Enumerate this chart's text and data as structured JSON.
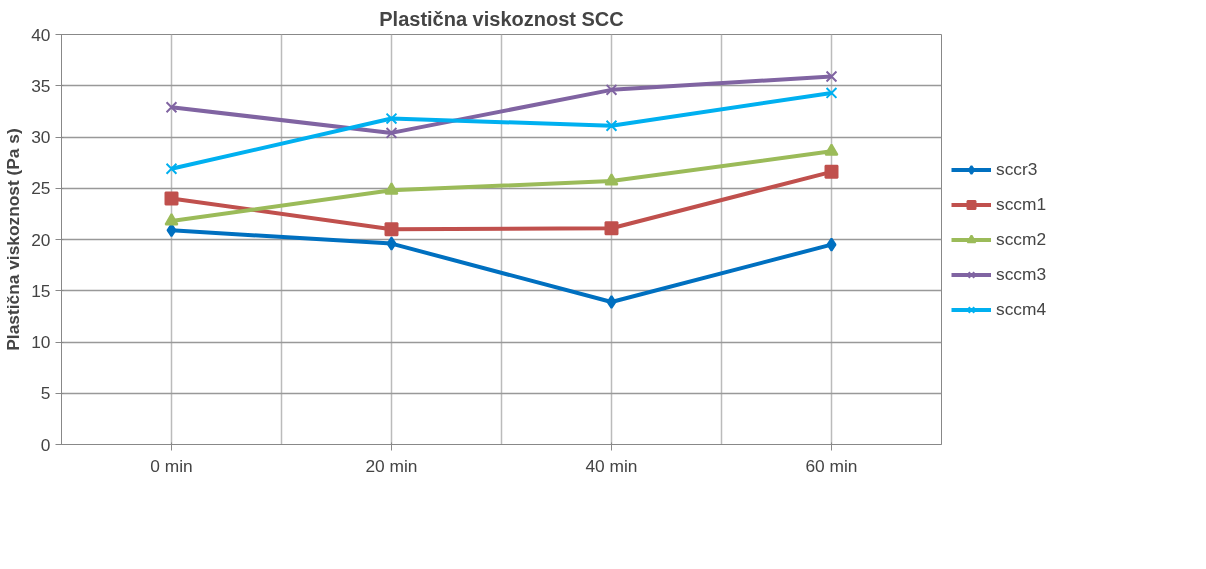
{
  "chart_data": {
    "type": "line",
    "title": "Plastična viskoznost SCC",
    "ylabel": "Plastična viskoznost (Pa s)",
    "categories": [
      "0 min",
      "20 min",
      "40 min",
      "60 min"
    ],
    "ylim": [
      0,
      40
    ],
    "yticks": [
      0,
      5,
      10,
      15,
      20,
      25,
      30,
      35,
      40
    ],
    "grid": true,
    "legend": "right",
    "line_style": "solid",
    "series": [
      {
        "name": "sccr3",
        "color": "#0070c0",
        "marker": "diamond",
        "values": [
          20.9,
          19.6,
          13.9,
          19.5
        ]
      },
      {
        "name": "sccm1",
        "color": "#c0504d",
        "marker": "square",
        "values": [
          24.0,
          21.0,
          21.1,
          26.6
        ]
      },
      {
        "name": "sccm2",
        "color": "#9bbb59",
        "marker": "triangle",
        "values": [
          21.8,
          24.8,
          25.7,
          28.6
        ]
      },
      {
        "name": "sccm3",
        "color": "#8064a2",
        "marker": "cross",
        "values": [
          32.9,
          30.4,
          34.6,
          35.9
        ]
      },
      {
        "name": "sccm4",
        "color": "#00b0f0",
        "marker": "cross",
        "values": [
          26.9,
          31.8,
          31.1,
          34.3
        ]
      }
    ]
  }
}
